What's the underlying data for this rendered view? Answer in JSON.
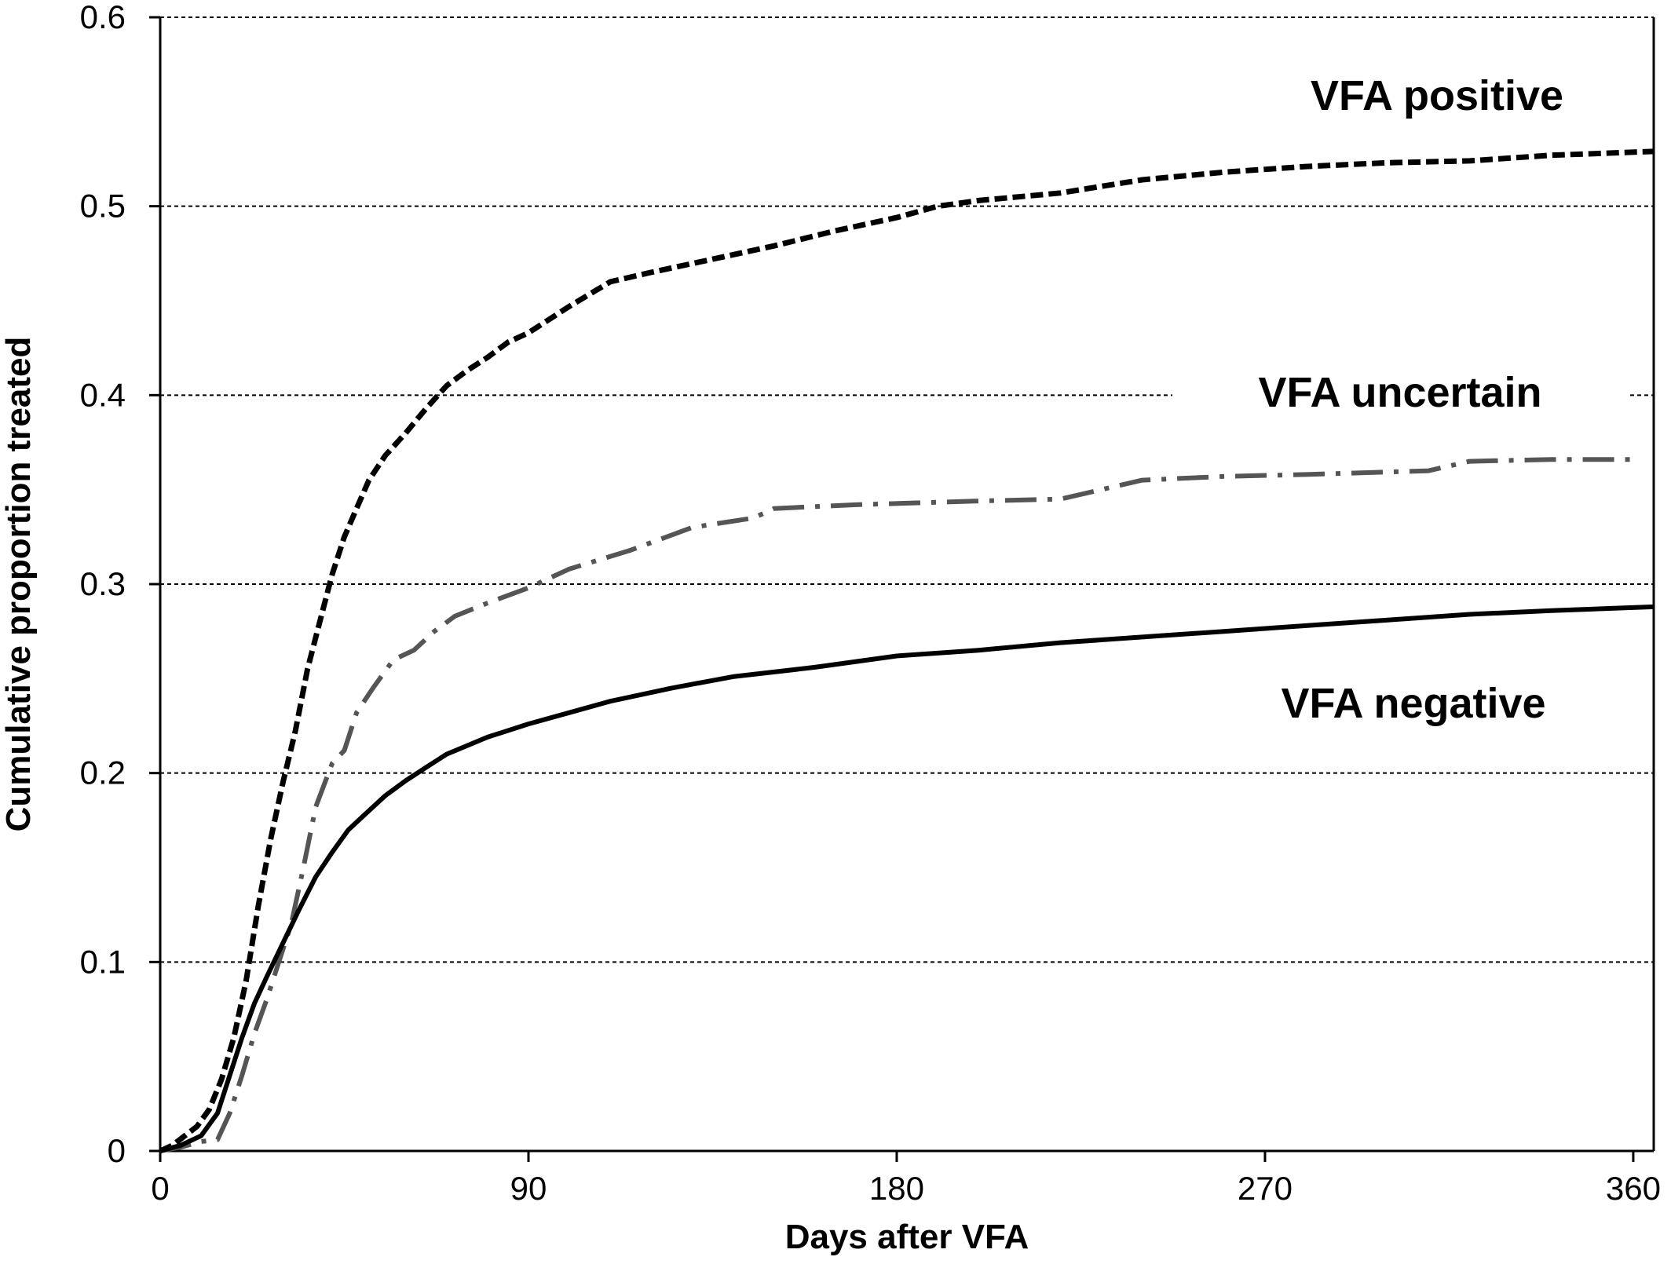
{
  "chart_data": {
    "type": "line",
    "xlabel": "Days after VFA",
    "ylabel": "Cumulative proportion treated",
    "xlim": [
      0,
      365
    ],
    "ylim": [
      0,
      0.6
    ],
    "xticks": [
      0,
      90,
      180,
      270,
      360
    ],
    "xtick_labels": [
      "0",
      "90",
      "180",
      "270",
      "360"
    ],
    "yticks": [
      0,
      0.1,
      0.2,
      0.3,
      0.4,
      0.5,
      0.6
    ],
    "ytick_labels": [
      "0",
      "0.1",
      "0.2",
      "0.3",
      "0.4",
      "0.5",
      "0.6"
    ],
    "grid": "horizontal dashed",
    "series": [
      {
        "name": "VFA positive",
        "color": "#000000",
        "dash": "dashed",
        "points": [
          [
            0,
            0
          ],
          [
            3,
            0.003
          ],
          [
            6,
            0.008
          ],
          [
            9,
            0.013
          ],
          [
            12,
            0.022
          ],
          [
            15,
            0.038
          ],
          [
            18,
            0.06
          ],
          [
            21,
            0.09
          ],
          [
            24,
            0.13
          ],
          [
            27,
            0.165
          ],
          [
            30,
            0.195
          ],
          [
            33,
            0.222
          ],
          [
            36,
            0.255
          ],
          [
            39,
            0.28
          ],
          [
            42,
            0.305
          ],
          [
            45,
            0.325
          ],
          [
            48,
            0.34
          ],
          [
            51,
            0.355
          ],
          [
            55,
            0.368
          ],
          [
            60,
            0.38
          ],
          [
            65,
            0.393
          ],
          [
            70,
            0.405
          ],
          [
            75,
            0.413
          ],
          [
            80,
            0.42
          ],
          [
            85,
            0.428
          ],
          [
            90,
            0.433
          ],
          [
            95,
            0.44
          ],
          [
            100,
            0.447
          ],
          [
            110,
            0.46
          ],
          [
            120,
            0.465
          ],
          [
            135,
            0.472
          ],
          [
            150,
            0.479
          ],
          [
            165,
            0.487
          ],
          [
            180,
            0.494
          ],
          [
            190,
            0.5
          ],
          [
            200,
            0.503
          ],
          [
            220,
            0.507
          ],
          [
            240,
            0.514
          ],
          [
            260,
            0.518
          ],
          [
            280,
            0.521
          ],
          [
            300,
            0.523
          ],
          [
            320,
            0.524
          ],
          [
            340,
            0.527
          ],
          [
            365,
            0.529
          ]
        ]
      },
      {
        "name": "VFA uncertain",
        "color": "#555555",
        "dash": "dash-dot",
        "points": [
          [
            0,
            0
          ],
          [
            5,
            0.002
          ],
          [
            10,
            0.005
          ],
          [
            14,
            0.006
          ],
          [
            17,
            0.02
          ],
          [
            20,
            0.04
          ],
          [
            23,
            0.062
          ],
          [
            26,
            0.08
          ],
          [
            29,
            0.1
          ],
          [
            32,
            0.12
          ],
          [
            35,
            0.15
          ],
          [
            38,
            0.182
          ],
          [
            42,
            0.205
          ],
          [
            45,
            0.212
          ],
          [
            48,
            0.232
          ],
          [
            52,
            0.245
          ],
          [
            57,
            0.26
          ],
          [
            62,
            0.265
          ],
          [
            67,
            0.275
          ],
          [
            72,
            0.283
          ],
          [
            80,
            0.29
          ],
          [
            90,
            0.298
          ],
          [
            100,
            0.308
          ],
          [
            115,
            0.318
          ],
          [
            130,
            0.33
          ],
          [
            145,
            0.335
          ],
          [
            150,
            0.34
          ],
          [
            170,
            0.342
          ],
          [
            200,
            0.344
          ],
          [
            220,
            0.345
          ],
          [
            240,
            0.355
          ],
          [
            260,
            0.357
          ],
          [
            280,
            0.358
          ],
          [
            310,
            0.36
          ],
          [
            320,
            0.365
          ],
          [
            340,
            0.366
          ],
          [
            360,
            0.366
          ]
        ]
      },
      {
        "name": "VFA negative",
        "color": "#000000",
        "dash": "solid",
        "points": [
          [
            0,
            0
          ],
          [
            5,
            0.003
          ],
          [
            10,
            0.008
          ],
          [
            14,
            0.02
          ],
          [
            17,
            0.04
          ],
          [
            20,
            0.06
          ],
          [
            23,
            0.078
          ],
          [
            26,
            0.092
          ],
          [
            30,
            0.11
          ],
          [
            34,
            0.128
          ],
          [
            38,
            0.145
          ],
          [
            42,
            0.158
          ],
          [
            46,
            0.17
          ],
          [
            50,
            0.178
          ],
          [
            55,
            0.188
          ],
          [
            60,
            0.196
          ],
          [
            65,
            0.203
          ],
          [
            70,
            0.21
          ],
          [
            80,
            0.219
          ],
          [
            90,
            0.226
          ],
          [
            100,
            0.232
          ],
          [
            110,
            0.238
          ],
          [
            125,
            0.245
          ],
          [
            140,
            0.251
          ],
          [
            160,
            0.256
          ],
          [
            180,
            0.262
          ],
          [
            200,
            0.265
          ],
          [
            220,
            0.269
          ],
          [
            240,
            0.272
          ],
          [
            260,
            0.275
          ],
          [
            280,
            0.278
          ],
          [
            300,
            0.281
          ],
          [
            320,
            0.284
          ],
          [
            340,
            0.286
          ],
          [
            365,
            0.288
          ]
        ]
      }
    ]
  }
}
